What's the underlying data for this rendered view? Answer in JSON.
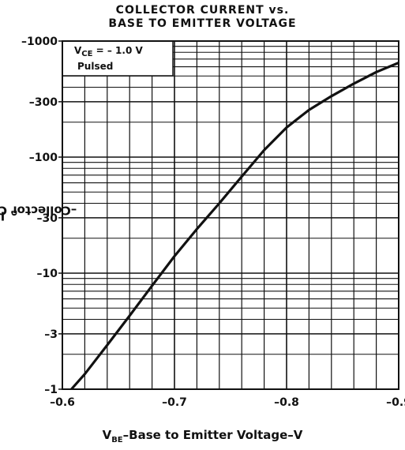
{
  "title": {
    "line1": "COLLECTOR CURRENT vs.",
    "line2": "BASE TO EMITTER VOLTAGE"
  },
  "axes": {
    "x_label_main": "V",
    "x_label_sub": "BE",
    "x_label_rest": "–Base to Emitter Voltage–V",
    "y_label_main": "I",
    "y_label_sub": "C",
    "y_label_rest": "–Collector Current–mA"
  },
  "conditions": {
    "vce_main": "V",
    "vce_sub": "CE",
    "vce_rest": " = – 1.0 V",
    "mode": "Pulsed"
  },
  "chart_data": {
    "type": "line",
    "x_axis": {
      "range": [
        -0.6,
        -0.9
      ],
      "ticks": [
        -0.6,
        -0.7,
        -0.8,
        -0.9
      ],
      "tick_labels": [
        "–0.6",
        "–0.7",
        "–0.8",
        "–0.9"
      ],
      "scale": "linear"
    },
    "y_axis": {
      "range": [
        -1,
        -1000
      ],
      "scale": "log",
      "ticks": [
        -1,
        -3,
        -10,
        -30,
        -100,
        -300,
        -1000
      ],
      "tick_labels": [
        "–1",
        "–3",
        "–10",
        "–30",
        "–100",
        "–300",
        "–1000"
      ]
    },
    "grid": "on",
    "series": [
      {
        "x": [
          -0.608,
          -0.62,
          -0.64,
          -0.66,
          -0.68,
          -0.7,
          -0.72,
          -0.74,
          -0.76,
          -0.78,
          -0.8,
          -0.82,
          -0.84,
          -0.86,
          -0.88,
          -0.9
        ],
        "y": [
          -1,
          -1.35,
          -2.4,
          -4.3,
          -7.8,
          -14,
          -24,
          -40,
          -68,
          -115,
          -180,
          -255,
          -335,
          -430,
          -540,
          -650
        ]
      }
    ]
  }
}
